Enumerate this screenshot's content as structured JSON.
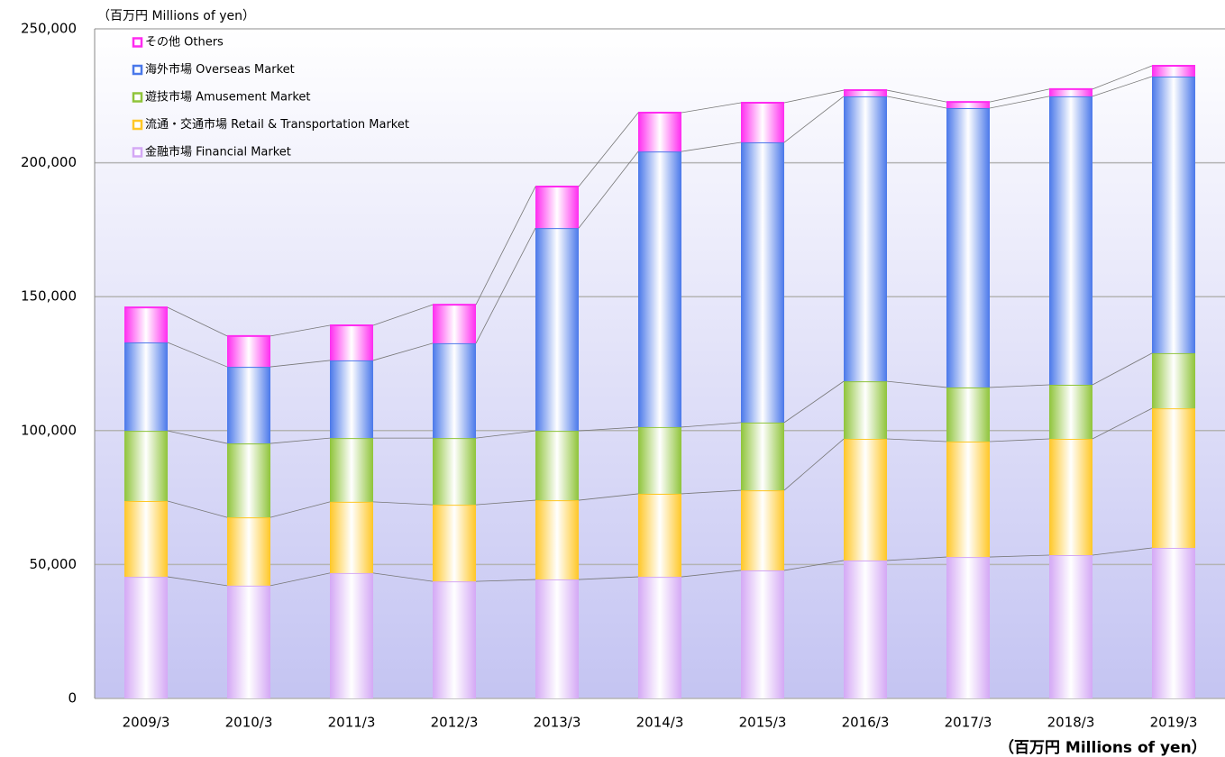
{
  "chart_data": {
    "type": "stacked_bar",
    "unit_label": "（百万円  Millions of yen）",
    "unit_label_bottom": "（百万円  Millions of yen）",
    "categories": [
      "2009/3",
      "2010/3",
      "2011/3",
      "2012/3",
      "2013/3",
      "2014/3",
      "2015/3",
      "2016/3",
      "2017/3",
      "2018/3",
      "2019/3"
    ],
    "series": [
      {
        "name": "金融市場 Financial Market",
        "color": "#d4a8f5",
        "values": [
          45400,
          42100,
          46800,
          43700,
          44400,
          45400,
          47800,
          51500,
          52800,
          53500,
          56200
        ]
      },
      {
        "name": "流通・交通市場 Retail & Transportation Market",
        "color": "#ffc726",
        "values": [
          28300,
          25500,
          26600,
          28600,
          29600,
          31000,
          29900,
          45400,
          43100,
          43400,
          52100
        ]
      },
      {
        "name": "遊技市場 Amusement Market",
        "color": "#8fc43a",
        "values": [
          26200,
          27600,
          23800,
          24900,
          25900,
          24900,
          25300,
          21500,
          20200,
          20200,
          20600
        ]
      },
      {
        "name": "海外市場 Overseas Market",
        "color": "#4a78ea",
        "values": [
          33000,
          28600,
          29000,
          35400,
          75700,
          102900,
          104600,
          106400,
          104300,
          107700,
          103300
        ]
      },
      {
        "name": "その他 Others",
        "color": "#ff2bf0",
        "values": [
          13100,
          11500,
          13100,
          14400,
          15500,
          14500,
          14800,
          2300,
          2300,
          2700,
          4000
        ]
      }
    ],
    "ylim": [
      0,
      250000
    ],
    "yticks": [
      0,
      {
        "value": 50000,
        "label": "50,000"
      },
      {
        "value": 100000,
        "label": "100,000"
      },
      {
        "value": 150000,
        "label": "150,000"
      },
      {
        "value": 200000,
        "label": "200,000"
      },
      {
        "value": 250000,
        "label": "250,000"
      }
    ],
    "grid": true,
    "legend": "top-left"
  }
}
